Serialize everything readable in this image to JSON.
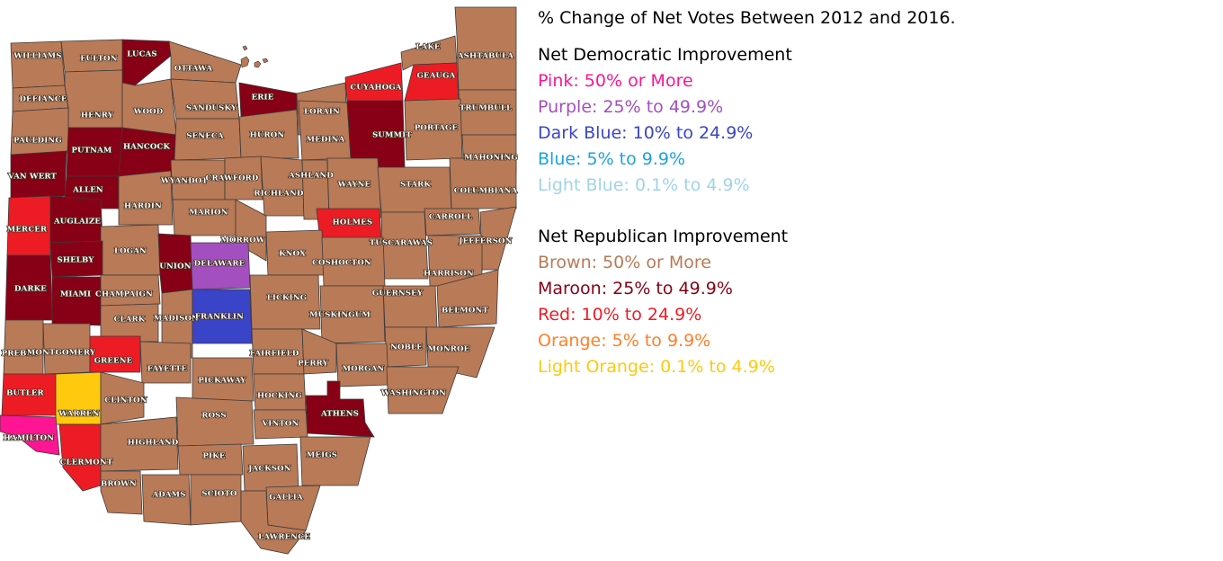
{
  "title": "% Change of Net Votes Between 2012 and 2016.",
  "legend": {
    "democratic": {
      "heading": "Net Democratic Improvement",
      "items": [
        {
          "label": "Pink: 50% or More",
          "color": "#ff1493"
        },
        {
          "label": "Purple: 25% to 49.9%",
          "color": "#a34fc0"
        },
        {
          "label": "Dark Blue: 10% to 24.9%",
          "color": "#3a44c8"
        },
        {
          "label": "Blue: 5% to 9.9%",
          "color": "#1ba3e3"
        },
        {
          "label": "Light Blue: 0.1% to 4.9%",
          "color": "#9fd4ea"
        }
      ]
    },
    "republican": {
      "heading": "Net Republican Improvement",
      "items": [
        {
          "label": "Brown: 50% or More",
          "color": "#b97a57"
        },
        {
          "label": "Maroon: 25% to 49.9%",
          "color": "#880015"
        },
        {
          "label": "Red: 10% to 24.9%",
          "color": "#ed1c24"
        },
        {
          "label": "Orange: 5% to 9.9%",
          "color": "#ff7f27"
        },
        {
          "label": "Light Orange: 0.1% to 4.9%",
          "color": "#ffc90e"
        }
      ]
    }
  },
  "category_colors": {
    "brown": "#b97a57",
    "maroon": "#880015",
    "red": "#ed1c24",
    "pink": "#ff1493",
    "purple": "#a34fc0",
    "darkblue": "#3a44c8",
    "lightorange": "#ffc90e"
  },
  "counties": [
    {
      "name": "WILLIAMS",
      "category": "brown"
    },
    {
      "name": "FULTON",
      "category": "brown"
    },
    {
      "name": "LUCAS",
      "category": "maroon"
    },
    {
      "name": "OTTAWA",
      "category": "brown"
    },
    {
      "name": "DEFIANCE",
      "category": "brown"
    },
    {
      "name": "HENRY",
      "category": "brown"
    },
    {
      "name": "WOOD",
      "category": "brown"
    },
    {
      "name": "SANDUSKY",
      "category": "brown"
    },
    {
      "name": "ERIE",
      "category": "maroon"
    },
    {
      "name": "LORAIN",
      "category": "brown"
    },
    {
      "name": "CUYAHOGA",
      "category": "red"
    },
    {
      "name": "LAKE",
      "category": "brown"
    },
    {
      "name": "GEAUGA",
      "category": "red"
    },
    {
      "name": "ASHTABULA",
      "category": "brown"
    },
    {
      "name": "TRUMBULL",
      "category": "brown"
    },
    {
      "name": "PAULDING",
      "category": "brown"
    },
    {
      "name": "PUTNAM",
      "category": "maroon"
    },
    {
      "name": "HANCOCK",
      "category": "maroon"
    },
    {
      "name": "SENECA",
      "category": "brown"
    },
    {
      "name": "HURON",
      "category": "brown"
    },
    {
      "name": "MEDINA",
      "category": "brown"
    },
    {
      "name": "SUMMIT",
      "category": "maroon"
    },
    {
      "name": "PORTAGE",
      "category": "brown"
    },
    {
      "name": "MAHONING",
      "category": "brown"
    },
    {
      "name": "VAN WERT",
      "category": "maroon"
    },
    {
      "name": "ALLEN",
      "category": "maroon"
    },
    {
      "name": "HARDIN",
      "category": "brown"
    },
    {
      "name": "WYANDOT",
      "category": "brown"
    },
    {
      "name": "CRAWFORD",
      "category": "brown"
    },
    {
      "name": "RICHLAND",
      "category": "brown"
    },
    {
      "name": "ASHLAND",
      "category": "brown"
    },
    {
      "name": "WAYNE",
      "category": "brown"
    },
    {
      "name": "STARK",
      "category": "brown"
    },
    {
      "name": "COLUMBIANA",
      "category": "brown"
    },
    {
      "name": "MERCER",
      "category": "red"
    },
    {
      "name": "AUGLAIZE",
      "category": "maroon"
    },
    {
      "name": "MARION",
      "category": "brown"
    },
    {
      "name": "MORROW",
      "category": "brown"
    },
    {
      "name": "HOLMES",
      "category": "red"
    },
    {
      "name": "CARROLL",
      "category": "brown"
    },
    {
      "name": "JEFFERSON",
      "category": "brown"
    },
    {
      "name": "TUSCARAWAS",
      "category": "brown"
    },
    {
      "name": "LOGAN",
      "category": "brown"
    },
    {
      "name": "UNION",
      "category": "maroon"
    },
    {
      "name": "DELAWARE",
      "category": "purple"
    },
    {
      "name": "KNOX",
      "category": "brown"
    },
    {
      "name": "COSHOCTON",
      "category": "brown"
    },
    {
      "name": "HARRISON",
      "category": "brown"
    },
    {
      "name": "SHELBY",
      "category": "maroon"
    },
    {
      "name": "DARKE",
      "category": "maroon"
    },
    {
      "name": "MIAMI",
      "category": "maroon"
    },
    {
      "name": "CHAMPAIGN",
      "category": "brown"
    },
    {
      "name": "LICKING",
      "category": "brown"
    },
    {
      "name": "GUERNSEY",
      "category": "brown"
    },
    {
      "name": "BELMONT",
      "category": "brown"
    },
    {
      "name": "CLARK",
      "category": "brown"
    },
    {
      "name": "MADISON",
      "category": "brown"
    },
    {
      "name": "FRANKLIN",
      "category": "darkblue"
    },
    {
      "name": "MUSKINGUM",
      "category": "brown"
    },
    {
      "name": "NOBLE",
      "category": "brown"
    },
    {
      "name": "MONROE",
      "category": "brown"
    },
    {
      "name": "PREBLE",
      "category": "brown"
    },
    {
      "name": "MONTGOMERY",
      "category": "brown"
    },
    {
      "name": "GREENE",
      "category": "red"
    },
    {
      "name": "FAYETTE",
      "category": "brown"
    },
    {
      "name": "FAIRFIELD",
      "category": "brown"
    },
    {
      "name": "PERRY",
      "category": "brown"
    },
    {
      "name": "MORGAN",
      "category": "brown"
    },
    {
      "name": "WASHINGTON",
      "category": "brown"
    },
    {
      "name": "BUTLER",
      "category": "red"
    },
    {
      "name": "WARREN",
      "category": "lightorange"
    },
    {
      "name": "CLINTON",
      "category": "brown"
    },
    {
      "name": "PICKAWAY",
      "category": "brown"
    },
    {
      "name": "HOCKING",
      "category": "brown"
    },
    {
      "name": "ATHENS",
      "category": "maroon"
    },
    {
      "name": "HAMILTON",
      "category": "pink"
    },
    {
      "name": "CLERMONT",
      "category": "red"
    },
    {
      "name": "ROSS",
      "category": "brown"
    },
    {
      "name": "VINTON",
      "category": "brown"
    },
    {
      "name": "HIGHLAND",
      "category": "brown"
    },
    {
      "name": "PIKE",
      "category": "brown"
    },
    {
      "name": "JACKSON",
      "category": "brown"
    },
    {
      "name": "MEIGS",
      "category": "brown"
    },
    {
      "name": "BROWN",
      "category": "brown"
    },
    {
      "name": "ADAMS",
      "category": "brown"
    },
    {
      "name": "SCIOTO",
      "category": "brown"
    },
    {
      "name": "GALLIA",
      "category": "brown"
    },
    {
      "name": "LAWRENCE",
      "category": "brown"
    }
  ]
}
